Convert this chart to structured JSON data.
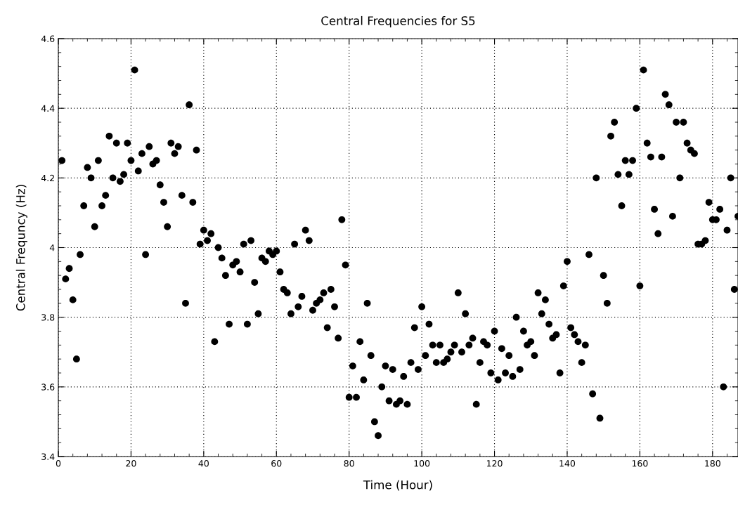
{
  "chart_data": {
    "type": "scatter",
    "title": "Central Frequencies for S5",
    "xlabel": "Time (Hour)",
    "ylabel": "Central Frequncy (Hz)",
    "xlim": [
      0,
      187
    ],
    "ylim": [
      3.4,
      4.6
    ],
    "xticks": [
      0,
      20,
      40,
      60,
      80,
      100,
      120,
      140,
      160,
      180
    ],
    "yticks": [
      {
        "value": 3.4,
        "label": "3.4"
      },
      {
        "value": 3.6,
        "label": "3.6"
      },
      {
        "value": 3.8,
        "label": "3.8"
      },
      4,
      {
        "value": 4.2,
        "label": "4.2"
      },
      {
        "value": 4.4,
        "label": "4.4"
      },
      {
        "value": 4.6,
        "label": "4.6"
      }
    ],
    "grid": true,
    "marker": "circle",
    "series": [
      {
        "color": "#000000",
        "x": [
          1,
          2,
          3,
          4,
          5,
          6,
          7,
          8,
          9,
          10,
          11,
          12,
          13,
          14,
          15,
          16,
          17,
          18,
          19,
          20,
          21,
          22,
          23,
          24,
          25,
          26,
          27,
          28,
          29,
          30,
          31,
          32,
          33,
          34,
          35,
          36,
          37,
          38,
          39,
          40,
          41,
          42,
          43,
          44,
          45,
          46,
          47,
          48,
          49,
          50,
          51,
          52,
          53,
          54,
          55,
          56,
          57,
          58,
          59,
          60,
          61,
          62,
          63,
          64,
          65,
          66,
          67,
          68,
          69,
          70,
          71,
          72,
          73,
          74,
          75,
          76,
          77,
          78,
          79,
          80,
          81,
          82,
          83,
          84,
          85,
          86,
          87,
          88,
          89,
          90,
          91,
          92,
          93,
          94,
          95,
          96,
          97,
          98,
          99,
          100,
          101,
          102,
          103,
          104,
          105,
          106,
          107,
          108,
          109,
          110,
          111,
          112,
          113,
          114,
          115,
          116,
          117,
          118,
          119,
          120,
          121,
          122,
          123,
          124,
          125,
          126,
          127,
          128,
          129,
          130,
          131,
          132,
          133,
          134,
          135,
          136,
          137,
          138,
          139,
          140,
          141,
          142,
          143,
          144,
          145,
          146,
          147,
          148,
          149,
          150,
          151,
          152,
          153,
          154,
          155,
          156,
          157,
          158,
          159,
          160,
          161,
          162,
          163,
          164,
          165,
          166,
          167,
          168,
          169,
          170,
          171,
          172,
          173,
          174,
          175,
          176,
          177,
          178,
          179,
          180,
          181,
          182,
          183,
          184,
          185,
          186,
          187
        ],
        "values": [
          4.25,
          3.91,
          3.94,
          3.85,
          3.68,
          3.98,
          4.12,
          4.23,
          4.2,
          4.06,
          4.25,
          4.12,
          4.15,
          4.32,
          4.2,
          4.3,
          4.19,
          4.21,
          4.3,
          4.25,
          4.51,
          4.22,
          4.27,
          3.98,
          4.29,
          4.24,
          4.25,
          4.18,
          4.13,
          4.06,
          4.3,
          4.27,
          4.29,
          4.15,
          3.84,
          4.41,
          4.13,
          4.28,
          4.01,
          4.05,
          4.02,
          4.04,
          3.73,
          4.0,
          3.97,
          3.92,
          3.78,
          3.95,
          3.96,
          3.93,
          4.01,
          3.78,
          4.02,
          3.9,
          3.81,
          3.97,
          3.96,
          3.99,
          3.98,
          3.99,
          3.93,
          3.88,
          3.87,
          3.81,
          4.01,
          3.83,
          3.86,
          4.05,
          4.02,
          3.82,
          3.84,
          3.85,
          3.87,
          3.77,
          3.88,
          3.83,
          3.74,
          4.08,
          3.95,
          3.57,
          3.66,
          3.57,
          3.73,
          3.62,
          3.84,
          3.69,
          3.5,
          3.46,
          3.6,
          3.66,
          3.56,
          3.65,
          3.55,
          3.56,
          3.63,
          3.55,
          3.67,
          3.77,
          3.65,
          3.83,
          3.69,
          3.78,
          3.72,
          3.67,
          3.72,
          3.67,
          3.68,
          3.7,
          3.72,
          3.87,
          3.7,
          3.81,
          3.72,
          3.74,
          3.55,
          3.67,
          3.73,
          3.72,
          3.64,
          3.76,
          3.62,
          3.71,
          3.64,
          3.69,
          3.63,
          3.8,
          3.65,
          3.76,
          3.72,
          3.73,
          3.69,
          3.87,
          3.81,
          3.85,
          3.78,
          3.74,
          3.75,
          3.64,
          3.89,
          3.96,
          3.77,
          3.75,
          3.73,
          3.67,
          3.72,
          3.98,
          3.58,
          4.2,
          3.51,
          3.92,
          3.84,
          4.32,
          4.36,
          4.21,
          4.12,
          4.25,
          4.21,
          4.25,
          4.4,
          3.89,
          4.51,
          4.3,
          4.26,
          4.11,
          4.04,
          4.26,
          4.44,
          4.41,
          4.09,
          4.36,
          4.2,
          4.36,
          4.3,
          4.28,
          4.27,
          4.01,
          4.01,
          4.02,
          4.13,
          4.08,
          4.08,
          4.11,
          3.6,
          4.05,
          4.2,
          3.88,
          4.09
        ]
      }
    ]
  }
}
